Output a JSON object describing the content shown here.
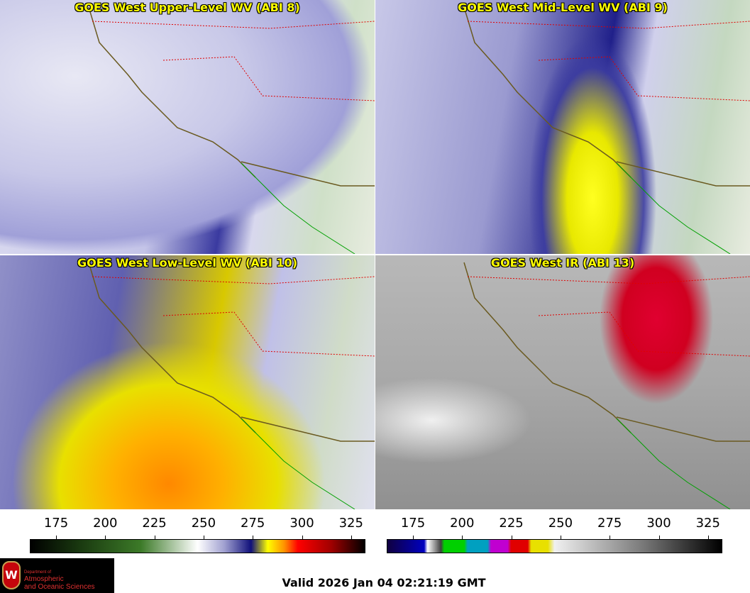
{
  "panels": [
    {
      "title": "GOES West Upper-Level WV (ABI 8)"
    },
    {
      "title": "GOES West Mid-Level WV (ABI 9)"
    },
    {
      "title": "GOES West Low-Level WV (ABI 10)"
    },
    {
      "title": "GOES West IR (ABI 13)"
    }
  ],
  "colorbars": [
    {
      "name": "water-vapor",
      "ticks": [
        "175",
        "200",
        "225",
        "250",
        "275",
        "300",
        "325"
      ]
    },
    {
      "name": "infrared",
      "ticks": [
        "175",
        "200",
        "225",
        "250",
        "275",
        "300",
        "325"
      ]
    }
  ],
  "logo": {
    "line1": "Department of",
    "line2": "Atmospheric",
    "line3": "and Oceanic Sciences",
    "crest_letter": "W"
  },
  "valid_time": "Valid 2026 Jan 04 02:21:19 GMT"
}
